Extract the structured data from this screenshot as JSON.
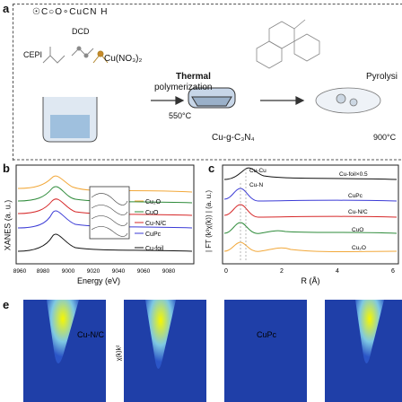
{
  "panel_a": {
    "letter": "a",
    "label_dcd": "DCD",
    "label_cepi": "CEPI",
    "label_cuno3": "Cu(NO₃)₂",
    "thermal_line1": "Thermal",
    "thermal_line2": "polymerization",
    "temp1": "550°C",
    "product": "Cu-g-C₃N₄",
    "pyrolysis": "Pyrolysi",
    "temp2": "900°C",
    "top_formula": "☉C○O∘CuCN  H"
  },
  "panel_b": {
    "letter": "b",
    "ylabel": "XANES (a. u.)",
    "xlabel": "Energy (eV)",
    "xticks": [
      "8960",
      "8980",
      "9000",
      "9020",
      "9040",
      "9060",
      "9080"
    ],
    "legend": [
      "Cu₂O",
      "CuO",
      "Cu-N/C",
      "CuPc",
      "Cu-foil"
    ]
  },
  "panel_c": {
    "letter": "c",
    "ylabel": "| FT (k³χ(k)) | (a. u.)",
    "xlabel": "R (Å)",
    "xticks": [
      "0",
      "2",
      "4",
      "6"
    ],
    "annotations": {
      "cucu": "Cu-Cu",
      "cun": "Cu-N",
      "cufoil": "Cu-foil×0.5",
      "cupc": "CuPc",
      "cunc": "Cu-N/C",
      "cuo": "CuO",
      "cu2o": "Cu₂O"
    }
  },
  "panel_d": {
    "letter": "e",
    "label_left": "Cu-N/C",
    "label_right": "CuPc",
    "ylabel": "χ(k)k²"
  },
  "colors": {
    "cu2o": "#f2a83a",
    "cuo": "#2e8b3a",
    "cunc": "#d62728",
    "cupc": "#3b3bd6",
    "cufoil": "#111111",
    "wavelet_yellow": "#f7f700",
    "wavelet_blue": "#2b55c7"
  }
}
